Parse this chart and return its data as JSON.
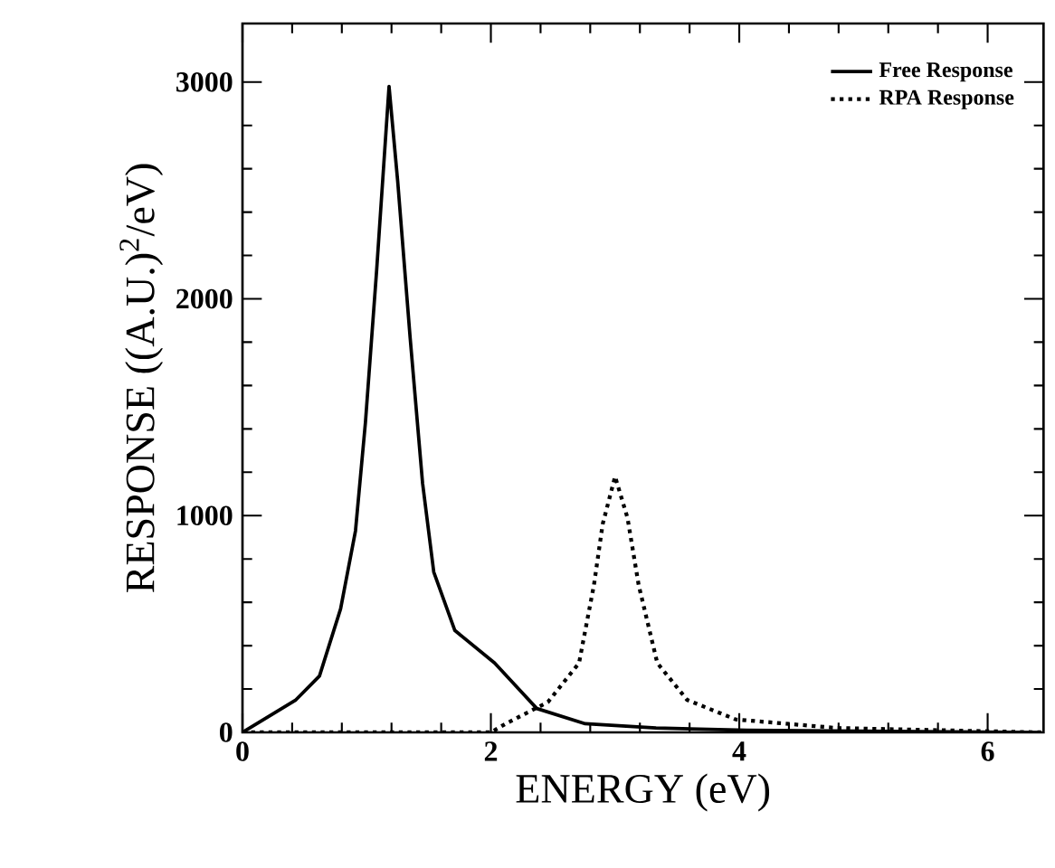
{
  "chart_data": {
    "type": "line",
    "xlabel": "ENERGY (eV)",
    "ylabel": "RESPONSE ((A.U.)$^{2}$/eV)",
    "xlim": [
      0,
      6.45
    ],
    "ylim": [
      0,
      3270
    ],
    "xticks": [
      0,
      2,
      4,
      6
    ],
    "yticks": [
      0,
      1000,
      2000,
      3000
    ],
    "legend": "top right",
    "grid": false,
    "series": [
      {
        "name": "Free Response",
        "color": "#000000",
        "line_style": "solid",
        "x": [
          0,
          0.43,
          0.62,
          0.79,
          0.91,
          0.99,
          1.08,
          1.18,
          1.25,
          1.35,
          1.45,
          1.54,
          1.71,
          2.03,
          2.37,
          2.76,
          3.33,
          4.06,
          6.43
        ],
        "values": [
          0,
          150,
          260,
          570,
          930,
          1430,
          2130,
          2980,
          2540,
          1820,
          1150,
          740,
          470,
          320,
          110,
          40,
          20,
          10,
          0
        ]
      },
      {
        "name": "RPA Response",
        "color": "#000000",
        "line_style": "dotted",
        "x": [
          0,
          1.0,
          2.0,
          2.12,
          2.46,
          2.71,
          2.83,
          2.9,
          3.0,
          3.1,
          3.19,
          3.34,
          3.58,
          3.97,
          4.79,
          6.43
        ],
        "values": [
          0,
          0,
          0,
          40,
          140,
          320,
          680,
          960,
          1180,
          990,
          680,
          320,
          150,
          60,
          20,
          0
        ]
      }
    ]
  }
}
